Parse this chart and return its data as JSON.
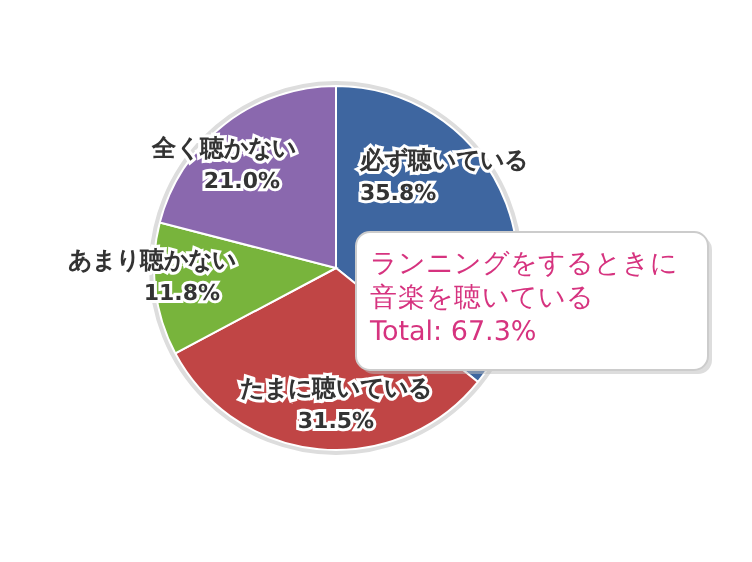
{
  "chart_data": {
    "type": "pie",
    "categories": [
      "必ず聴いている",
      "たまに聴いている",
      "あまり聴かない",
      "全く聴かない"
    ],
    "values": [
      35.8,
      31.5,
      11.8,
      21.0
    ],
    "value_labels": [
      "35.8%",
      "31.5%",
      "11.8%",
      "21.0%"
    ],
    "colors": [
      "#3e66a0",
      "#c04545",
      "#78b43c",
      "#8a68ae"
    ],
    "annotations": [
      "ランニングをするときに音楽を聴いている",
      "Total: 67.3%"
    ]
  }
}
